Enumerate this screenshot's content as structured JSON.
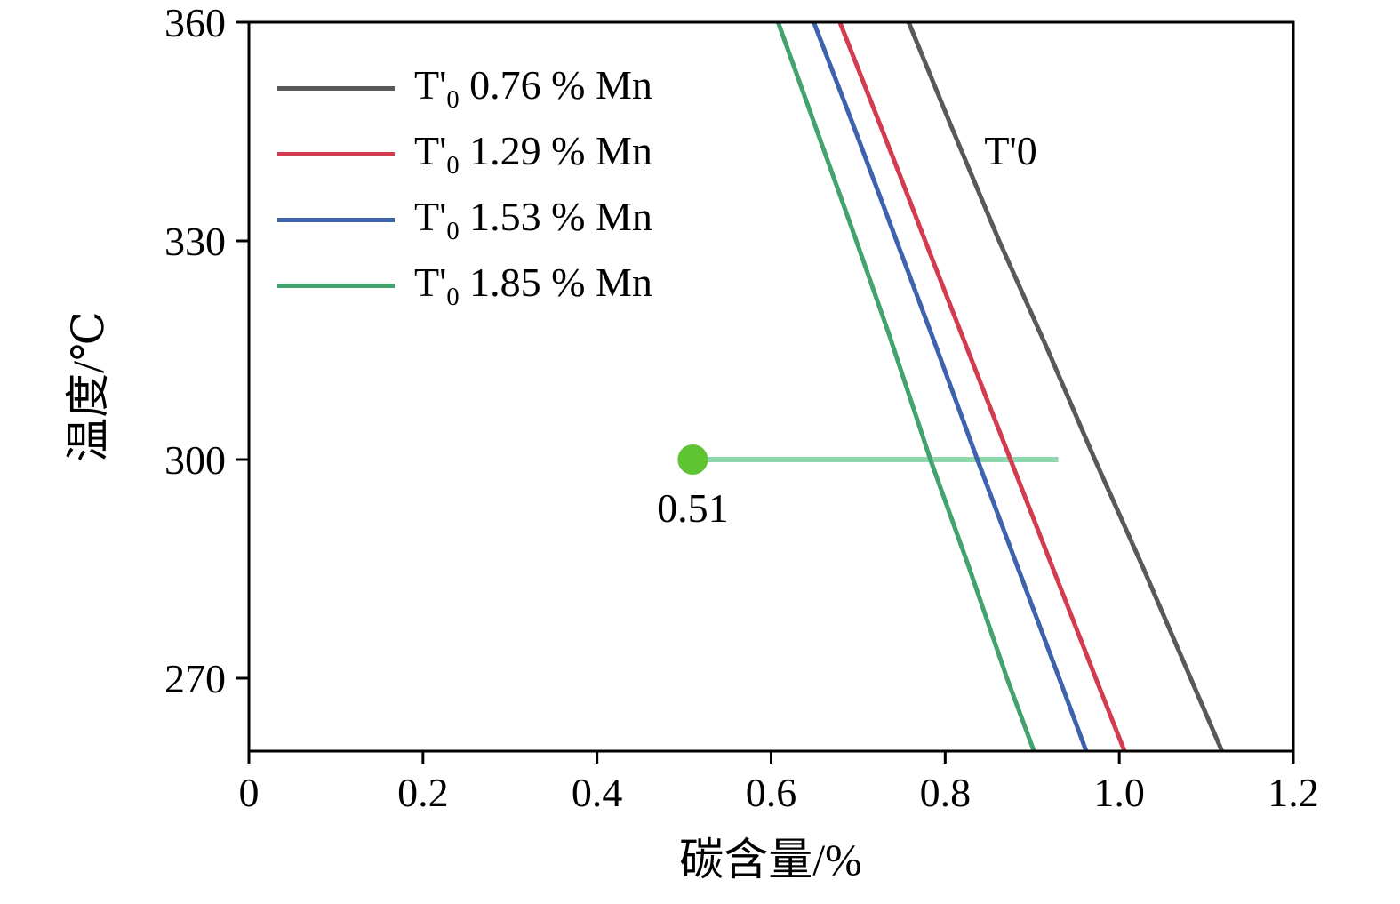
{
  "figure": {
    "background": "#ffffff"
  },
  "chart_data": {
    "type": "line",
    "title": "",
    "xlabel": "碳含量/%",
    "ylabel": "温度/℃",
    "xlim": [
      0,
      1.2
    ],
    "ylim": [
      260,
      360
    ],
    "grid": false,
    "legend_position": "top-left-inside",
    "axis_color": "#000000",
    "xticks": {
      "values": [
        0,
        0.2,
        0.4,
        0.6,
        0.8,
        1.0,
        1.2
      ],
      "labels": [
        "0",
        "0.2",
        "0.4",
        "0.6",
        "0.8",
        "1.0",
        "1.2"
      ]
    },
    "yticks": {
      "values": [
        270,
        300,
        330,
        360
      ],
      "labels": [
        "270",
        "300",
        "330",
        "360"
      ]
    },
    "series": [
      {
        "id": "t0-076mn",
        "name": "T'0 0.76 % Mn",
        "label_prefix": "T'",
        "label_sub": "0",
        "label_rest": " 0.76 % Mn",
        "color": "#595959",
        "points": [
          [
            0.758,
            360
          ],
          [
            0.806,
            346
          ],
          [
            0.862,
            330
          ],
          [
            0.918,
            315
          ],
          [
            0.972,
            300
          ],
          [
            1.028,
            285
          ],
          [
            1.082,
            270
          ],
          [
            1.118,
            260
          ]
        ]
      },
      {
        "id": "t0-129mn",
        "name": "T'0 1.29 % Mn",
        "label_prefix": "T'",
        "label_sub": "0",
        "label_rest": " 1.29 % Mn",
        "color": "#d43a50",
        "points": [
          [
            0.679,
            360
          ],
          [
            0.725,
            346
          ],
          [
            0.748,
            339
          ],
          [
            0.777,
            330
          ],
          [
            0.826,
            315
          ],
          [
            0.875,
            300
          ],
          [
            0.924,
            285
          ],
          [
            0.973,
            270
          ],
          [
            1.006,
            260
          ]
        ]
      },
      {
        "id": "t0-153mn",
        "name": "T'0 1.53 % Mn",
        "label_prefix": "T'",
        "label_sub": "0",
        "label_rest": " 1.53 % Mn",
        "color": "#3d63ad",
        "points": [
          [
            0.649,
            360
          ],
          [
            0.694,
            346
          ],
          [
            0.741,
            331
          ],
          [
            0.788,
            316
          ],
          [
            0.837,
            300
          ],
          [
            0.884,
            285
          ],
          [
            0.931,
            270
          ],
          [
            0.962,
            260
          ]
        ]
      },
      {
        "id": "t0-185mn",
        "name": "T'0 1.85 % Mn",
        "label_prefix": "T'",
        "label_sub": "0",
        "label_rest": " 1.85 % Mn",
        "color": "#43a26d",
        "points": [
          [
            0.608,
            360
          ],
          [
            0.65,
            346
          ],
          [
            0.695,
            331
          ],
          [
            0.736,
            317
          ],
          [
            0.783,
            300
          ],
          [
            0.828,
            285
          ],
          [
            0.871,
            270
          ],
          [
            0.902,
            260
          ]
        ]
      }
    ],
    "annotation": {
      "text": "T'0",
      "x": 0.845,
      "y": 342
    },
    "marker": {
      "x": 0.51,
      "y": 300,
      "label": "0.51",
      "dot_color": "#5ec431",
      "line_color": "#8fd8ad",
      "line_end_x": 0.93
    }
  }
}
